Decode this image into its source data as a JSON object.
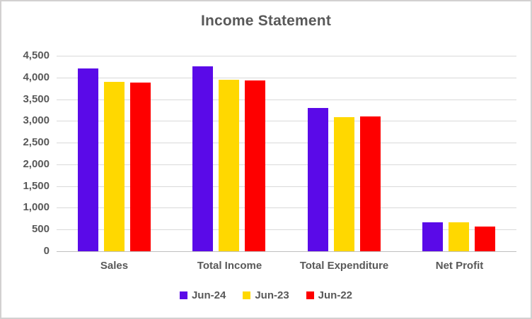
{
  "chart_data": {
    "type": "bar",
    "title": "Income Statement",
    "categories": [
      "Sales",
      "Total Income",
      "Total Expenditure",
      "Net Profit"
    ],
    "series": [
      {
        "name": "Jun-24",
        "color": "#5A0AE8",
        "values": [
          4200,
          4250,
          3290,
          670
        ]
      },
      {
        "name": "Jun-23",
        "color": "#FFD800",
        "values": [
          3900,
          3950,
          3090,
          670
        ]
      },
      {
        "name": "Jun-22",
        "color": "#FE0000",
        "values": [
          3890,
          3930,
          3110,
          570
        ]
      }
    ],
    "xlabel": "",
    "ylabel": "",
    "ylim": [
      0,
      4500
    ],
    "ytick_step": 500,
    "ytick_labels": [
      "4,500",
      "4,000",
      "3,500",
      "3,000",
      "2,500",
      "2,000",
      "1,500",
      "1,000",
      "500",
      "0"
    ],
    "grid": true,
    "legend_position": "bottom"
  },
  "styles": {
    "text_color": "#595959",
    "gridline_color": "#D9D9D9",
    "axis_line_color": "#BFBFBF",
    "frame_border_color": "#D2D0D0",
    "background": "#FFFFFF"
  }
}
